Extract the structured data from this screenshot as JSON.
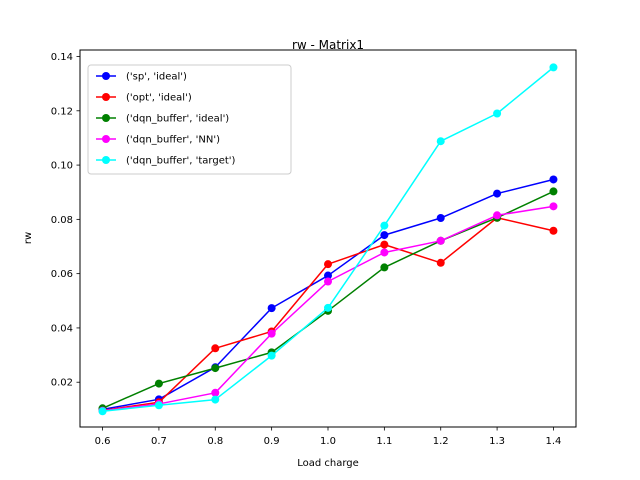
{
  "chart_data": {
    "type": "line",
    "title": "rw - Matrix1",
    "xlabel": "Load charge",
    "ylabel": "rw",
    "x": [
      0.6,
      0.7,
      0.8,
      0.9,
      1.0,
      1.1,
      1.2,
      1.3,
      1.4
    ],
    "x_ticks": [
      "0.6",
      "0.7",
      "0.8",
      "0.9",
      "1.0",
      "1.1",
      "1.2",
      "1.3",
      "1.4"
    ],
    "y_ticks": [
      "0.02",
      "0.04",
      "0.06",
      "0.08",
      "0.10",
      "0.12",
      "0.14"
    ],
    "y_tick_values": [
      0.02,
      0.04,
      0.06,
      0.08,
      0.1,
      0.12,
      0.14
    ],
    "xlim": [
      0.56,
      1.44
    ],
    "ylim": [
      0.0035,
      0.1424
    ],
    "grid": false,
    "legend_position": "upper-left",
    "series": [
      {
        "name": "('sp', 'ideal')",
        "color": "#0000ff",
        "values": [
          0.01,
          0.0137,
          0.0255,
          0.0473,
          0.0593,
          0.0742,
          0.0805,
          0.0895,
          0.0947
        ]
      },
      {
        "name": "('opt', 'ideal')",
        "color": "#ff0000",
        "values": [
          0.0096,
          0.0126,
          0.0325,
          0.0387,
          0.0635,
          0.0707,
          0.064,
          0.0806,
          0.0758
        ]
      },
      {
        "name": "('dqn_buffer', 'ideal')",
        "color": "#008000",
        "values": [
          0.0104,
          0.0195,
          0.0252,
          0.031,
          0.0463,
          0.0623,
          0.0721,
          0.0806,
          0.0903
        ]
      },
      {
        "name": "('dqn_buffer', 'NN')",
        "color": "#ff00ff",
        "values": [
          0.0095,
          0.012,
          0.0161,
          0.0379,
          0.0571,
          0.0678,
          0.0721,
          0.0815,
          0.0848
        ]
      },
      {
        "name": "('dqn_buffer', 'target')",
        "color": "#00ffff",
        "values": [
          0.0093,
          0.0115,
          0.0136,
          0.0298,
          0.0474,
          0.0777,
          0.1088,
          0.119,
          0.136
        ]
      }
    ]
  }
}
